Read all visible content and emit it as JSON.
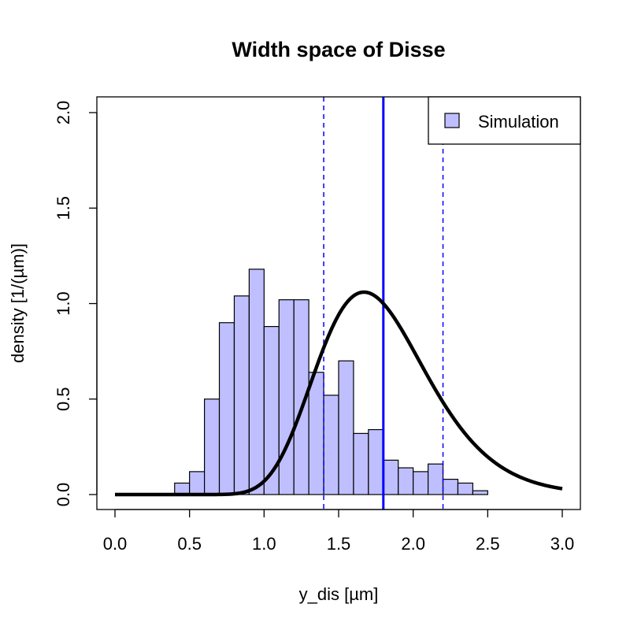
{
  "chart_data": {
    "type": "bar",
    "title": "Width space of Disse",
    "xlabel": "y_dis [µm]",
    "ylabel": "density [1/(µm)]",
    "xlim": [
      0.0,
      3.0
    ],
    "ylim": [
      0.0,
      2.0
    ],
    "x_ticks": [
      "0.0",
      "0.5",
      "1.0",
      "1.5",
      "2.0",
      "2.5",
      "3.0"
    ],
    "y_ticks": [
      "0.0",
      "0.5",
      "1.0",
      "1.5",
      "2.0"
    ],
    "histogram": {
      "name": "Simulation",
      "color": "#bfbfff",
      "bin_width": 0.1,
      "bin_starts": [
        0.4,
        0.5,
        0.6,
        0.7,
        0.8,
        0.9,
        1.0,
        1.1,
        1.2,
        1.3,
        1.4,
        1.5,
        1.6,
        1.7,
        1.8,
        1.9,
        2.0,
        2.1,
        2.2,
        2.3,
        2.4
      ],
      "densities": [
        0.06,
        0.12,
        0.5,
        0.9,
        1.04,
        1.18,
        0.88,
        1.02,
        1.02,
        0.64,
        0.52,
        0.7,
        0.32,
        0.34,
        0.18,
        0.14,
        0.12,
        0.16,
        0.08,
        0.06,
        0.02
      ]
    },
    "density_curve": {
      "type": "log-normal",
      "mode": 1.67,
      "peak_density": 1.06,
      "color": "#000000"
    },
    "vertical_lines": [
      {
        "x": 1.8,
        "style": "solid",
        "color": "#0000ff"
      },
      {
        "x": 1.4,
        "style": "dashed",
        "color": "#0000ff"
      },
      {
        "x": 2.2,
        "style": "dashed",
        "color": "#0000ff"
      }
    ],
    "legend": {
      "placement": "top-right",
      "entries": [
        "Simulation"
      ]
    },
    "grid": false
  }
}
